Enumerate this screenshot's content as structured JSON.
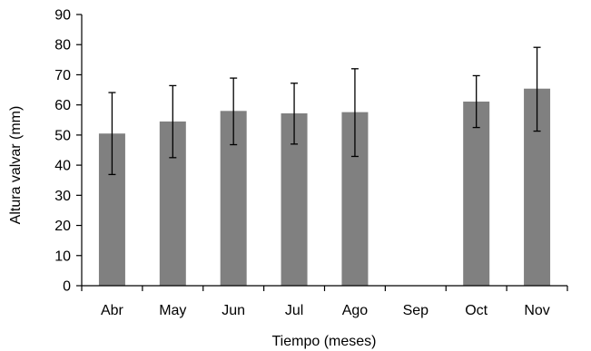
{
  "chart_data": {
    "type": "bar",
    "title": "",
    "xlabel": "Tiempo (meses)",
    "ylabel": "Altura valvar (mm)",
    "ylim": [
      0,
      90
    ],
    "yticks": [
      0,
      10,
      20,
      30,
      40,
      50,
      60,
      70,
      80,
      90
    ],
    "yticks_text": [
      "0",
      "10",
      "20",
      "30",
      "40",
      "50",
      "60",
      "70",
      "80",
      "90"
    ],
    "categories": [
      "Abr",
      "May",
      "Jun",
      "Jul",
      "Ago",
      "Sep",
      "Oct",
      "Nov"
    ],
    "values": [
      50.5,
      54.5,
      58,
      57.2,
      57.6,
      null,
      61.1,
      65.4
    ],
    "error_low": [
      36.9,
      42.5,
      46.8,
      47.0,
      42.9,
      null,
      52.5,
      51.3
    ],
    "error_high": [
      64.1,
      66.4,
      68.9,
      67.2,
      72.0,
      null,
      69.7,
      79.1
    ],
    "bar_color": "#808080",
    "axis_color": "#000000",
    "grid": false,
    "legend": "none"
  }
}
